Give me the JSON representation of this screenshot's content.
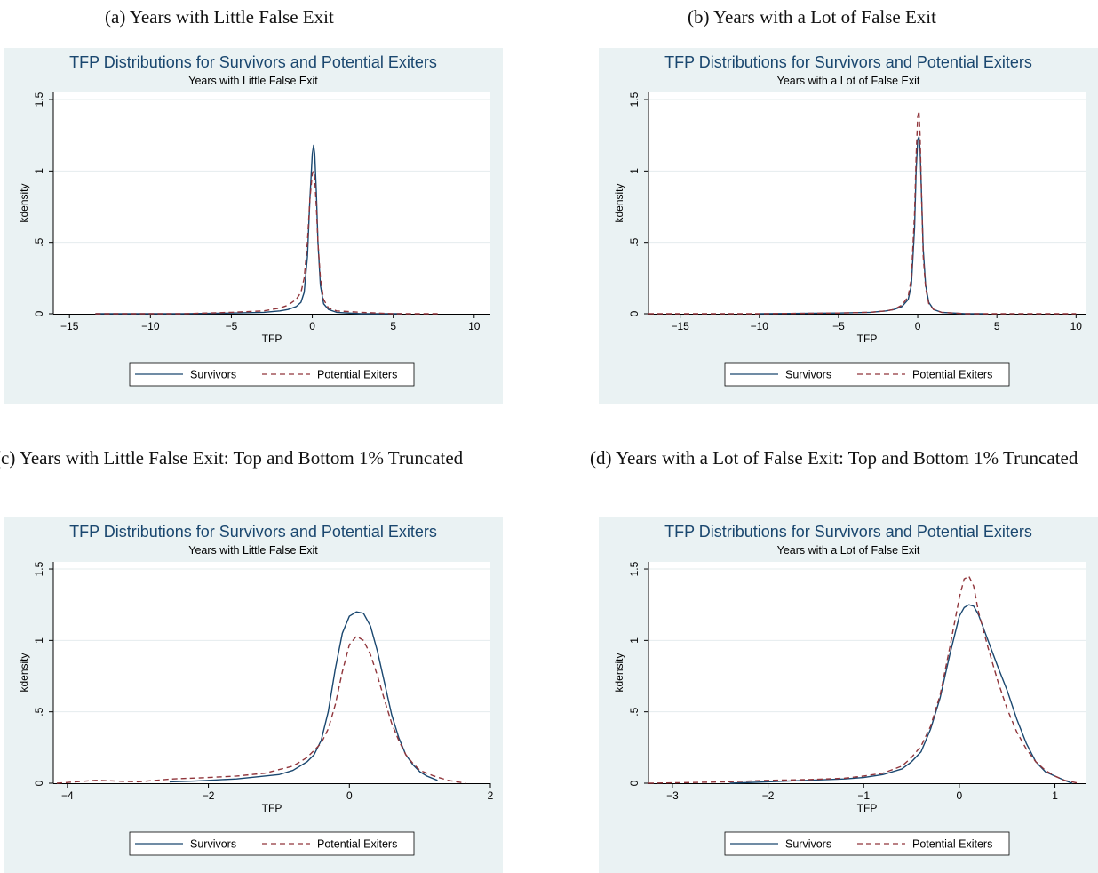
{
  "captions": [
    "(a) Years with Little False Exit",
    "(b) Years with a Lot of False Exit",
    "(c) Years with Little False Exit: Top and Bottom 1% Truncated",
    "(d) Years with a Lot of False Exit: Top and Bottom 1% Truncated"
  ],
  "colors": {
    "panel_bg": "#eaf2f3",
    "plot_bg": "#ffffff",
    "survivors": "#1a476f",
    "potential_exiters": "#90353b",
    "title": "#1a476f"
  },
  "chart_data": [
    {
      "type": "line",
      "title": "TFP Distributions for Survivors and Potential Exiters",
      "subtitle": "Years with Little False Exit",
      "xlabel": "TFP",
      "ylabel": "kdensity",
      "xlim": [
        -16,
        11
      ],
      "ylim": [
        0,
        1.55
      ],
      "xticks": [
        -15,
        -10,
        -5,
        0,
        5,
        10
      ],
      "xtick_labels": [
        "−15",
        "−10",
        "−5",
        "0",
        "5",
        "10"
      ],
      "yticks": [
        0,
        0.5,
        1,
        1.5
      ],
      "ytick_labels": [
        "0",
        ".5",
        "1",
        "1.5"
      ],
      "grid": true,
      "legend": "bottom",
      "series": [
        {
          "name": "Survivors",
          "style": "solid",
          "x": [
            -13.4,
            -8,
            -5,
            -3,
            -2,
            -1.5,
            -1,
            -0.7,
            -0.5,
            -0.3,
            -0.15,
            0,
            0.08,
            0.15,
            0.25,
            0.35,
            0.5,
            0.7,
            1,
            1.5,
            3,
            5.5
          ],
          "y": [
            0,
            0,
            0.005,
            0.01,
            0.02,
            0.03,
            0.05,
            0.08,
            0.15,
            0.4,
            0.8,
            1.12,
            1.18,
            1.12,
            0.85,
            0.5,
            0.2,
            0.07,
            0.03,
            0.01,
            0,
            0
          ]
        },
        {
          "name": "Potential Exiters",
          "style": "dashed",
          "x": [
            -13.4,
            -8,
            -5,
            -3,
            -2,
            -1.5,
            -1,
            -0.7,
            -0.5,
            -0.3,
            -0.15,
            0,
            0.08,
            0.15,
            0.25,
            0.35,
            0.5,
            0.7,
            1,
            1.5,
            3,
            5,
            7.8
          ],
          "y": [
            0,
            0,
            0.01,
            0.02,
            0.04,
            0.06,
            0.1,
            0.15,
            0.25,
            0.5,
            0.8,
            0.98,
            1.0,
            0.95,
            0.75,
            0.5,
            0.25,
            0.1,
            0.04,
            0.02,
            0.01,
            0,
            0
          ]
        }
      ]
    },
    {
      "type": "line",
      "title": "TFP Distributions for Survivors and Potential Exiters",
      "subtitle": "Years with a Lot of False Exit",
      "xlabel": "TFP",
      "ylabel": "kdensity",
      "xlim": [
        -17,
        10.6
      ],
      "ylim": [
        0,
        1.55
      ],
      "xticks": [
        -15,
        -10,
        -5,
        0,
        5,
        10
      ],
      "xtick_labels": [
        "−15",
        "−10",
        "−5",
        "0",
        "5",
        "10"
      ],
      "yticks": [
        0,
        0.5,
        1,
        1.5
      ],
      "ytick_labels": [
        "0",
        ".5",
        "1",
        "1.5"
      ],
      "grid": true,
      "legend": "bottom",
      "series": [
        {
          "name": "Survivors",
          "style": "solid",
          "x": [
            -10,
            -5,
            -3,
            -2,
            -1.5,
            -1,
            -0.6,
            -0.4,
            -0.2,
            -0.1,
            0,
            0.08,
            0.15,
            0.25,
            0.35,
            0.5,
            0.7,
            1,
            1.5,
            3,
            4.1
          ],
          "y": [
            0,
            0.005,
            0.01,
            0.02,
            0.03,
            0.05,
            0.1,
            0.2,
            0.6,
            1.0,
            1.22,
            1.24,
            1.15,
            0.8,
            0.45,
            0.2,
            0.08,
            0.03,
            0.01,
            0,
            0
          ]
        },
        {
          "name": "Potential Exiters",
          "style": "dashed",
          "x": [
            -17,
            -10,
            -5,
            -3,
            -2,
            -1.5,
            -1,
            -0.6,
            -0.4,
            -0.2,
            -0.1,
            0,
            0.08,
            0.15,
            0.25,
            0.35,
            0.5,
            0.7,
            1,
            1.5,
            3,
            5,
            10
          ],
          "y": [
            0,
            0,
            0.005,
            0.01,
            0.02,
            0.03,
            0.06,
            0.12,
            0.25,
            0.7,
            1.1,
            1.38,
            1.42,
            1.25,
            0.8,
            0.4,
            0.18,
            0.07,
            0.03,
            0.01,
            0,
            0,
            0
          ]
        }
      ]
    },
    {
      "type": "line",
      "title": "TFP Distributions for Survivors and Potential Exiters",
      "subtitle": "Years with Little False Exit",
      "xlabel": "TFP",
      "ylabel": "kdensity",
      "xlim": [
        -4.2,
        2.0
      ],
      "ylim": [
        0,
        1.55
      ],
      "xticks": [
        -4,
        -2,
        0,
        2
      ],
      "xtick_labels": [
        "−4",
        "−2",
        "0",
        "2"
      ],
      "yticks": [
        0,
        0.5,
        1,
        1.5
      ],
      "ytick_labels": [
        "0",
        ".5",
        "1",
        "1.5"
      ],
      "grid": true,
      "legend": "bottom",
      "series": [
        {
          "name": "Survivors",
          "style": "solid",
          "x": [
            -2.55,
            -2.2,
            -2.0,
            -1.8,
            -1.6,
            -1.4,
            -1.2,
            -1.0,
            -0.8,
            -0.6,
            -0.5,
            -0.4,
            -0.3,
            -0.2,
            -0.1,
            0,
            0.1,
            0.2,
            0.3,
            0.4,
            0.5,
            0.6,
            0.7,
            0.8,
            0.9,
            1.0,
            1.1,
            1.25
          ],
          "y": [
            0.01,
            0.015,
            0.02,
            0.025,
            0.03,
            0.04,
            0.05,
            0.06,
            0.09,
            0.15,
            0.2,
            0.3,
            0.5,
            0.8,
            1.05,
            1.17,
            1.2,
            1.19,
            1.1,
            0.92,
            0.7,
            0.48,
            0.32,
            0.2,
            0.13,
            0.08,
            0.05,
            0.02
          ]
        },
        {
          "name": "Potential Exiters",
          "style": "dashed",
          "x": [
            -4.15,
            -3.6,
            -3.0,
            -2.5,
            -2.0,
            -1.6,
            -1.2,
            -0.8,
            -0.6,
            -0.4,
            -0.3,
            -0.2,
            -0.1,
            0,
            0.1,
            0.2,
            0.3,
            0.4,
            0.5,
            0.6,
            0.7,
            0.8,
            0.9,
            1.0,
            1.2,
            1.4,
            1.65
          ],
          "y": [
            0.0,
            0.02,
            0.01,
            0.03,
            0.04,
            0.05,
            0.07,
            0.12,
            0.18,
            0.28,
            0.38,
            0.55,
            0.78,
            0.97,
            1.03,
            1.0,
            0.9,
            0.75,
            0.58,
            0.42,
            0.3,
            0.2,
            0.14,
            0.09,
            0.05,
            0.02,
            0.0
          ]
        }
      ]
    },
    {
      "type": "line",
      "title": "TFP Distributions for Survivors and Potential Exiters",
      "subtitle": "Years with a Lot of False Exit",
      "xlabel": "TFP",
      "ylabel": "kdensity",
      "xlim": [
        -3.25,
        1.32
      ],
      "ylim": [
        0,
        1.55
      ],
      "xticks": [
        -3,
        -2,
        -1,
        0,
        1
      ],
      "xtick_labels": [
        "−3",
        "−2",
        "−1",
        "0",
        "1"
      ],
      "yticks": [
        0,
        0.5,
        1,
        1.5
      ],
      "ytick_labels": [
        "0",
        ".5",
        "1",
        "1.5"
      ],
      "grid": true,
      "legend": "bottom",
      "series": [
        {
          "name": "Survivors",
          "style": "solid",
          "x": [
            -2.4,
            -2.0,
            -1.6,
            -1.2,
            -1.0,
            -0.8,
            -0.6,
            -0.5,
            -0.4,
            -0.3,
            -0.2,
            -0.1,
            0,
            0.05,
            0.1,
            0.15,
            0.2,
            0.3,
            0.4,
            0.5,
            0.6,
            0.7,
            0.8,
            0.9,
            1.0,
            1.1,
            1.18
          ],
          "y": [
            0.0,
            0.01,
            0.02,
            0.03,
            0.04,
            0.06,
            0.1,
            0.15,
            0.22,
            0.38,
            0.6,
            0.9,
            1.17,
            1.23,
            1.25,
            1.24,
            1.18,
            1.0,
            0.82,
            0.65,
            0.45,
            0.28,
            0.15,
            0.08,
            0.05,
            0.02,
            0.0
          ]
        },
        {
          "name": "Potential Exiters",
          "style": "dashed",
          "x": [
            -3.25,
            -2.8,
            -2.4,
            -2.0,
            -1.6,
            -1.2,
            -1.0,
            -0.8,
            -0.6,
            -0.5,
            -0.4,
            -0.3,
            -0.2,
            -0.1,
            0,
            0.05,
            0.1,
            0.15,
            0.2,
            0.3,
            0.4,
            0.5,
            0.6,
            0.7,
            0.8,
            0.9,
            1.0,
            1.1,
            1.25
          ],
          "y": [
            0.0,
            0.005,
            0.01,
            0.02,
            0.025,
            0.035,
            0.05,
            0.07,
            0.12,
            0.18,
            0.26,
            0.4,
            0.62,
            0.95,
            1.3,
            1.43,
            1.45,
            1.38,
            1.2,
            0.95,
            0.72,
            0.52,
            0.36,
            0.24,
            0.15,
            0.09,
            0.05,
            0.02,
            0.0
          ]
        }
      ]
    }
  ]
}
